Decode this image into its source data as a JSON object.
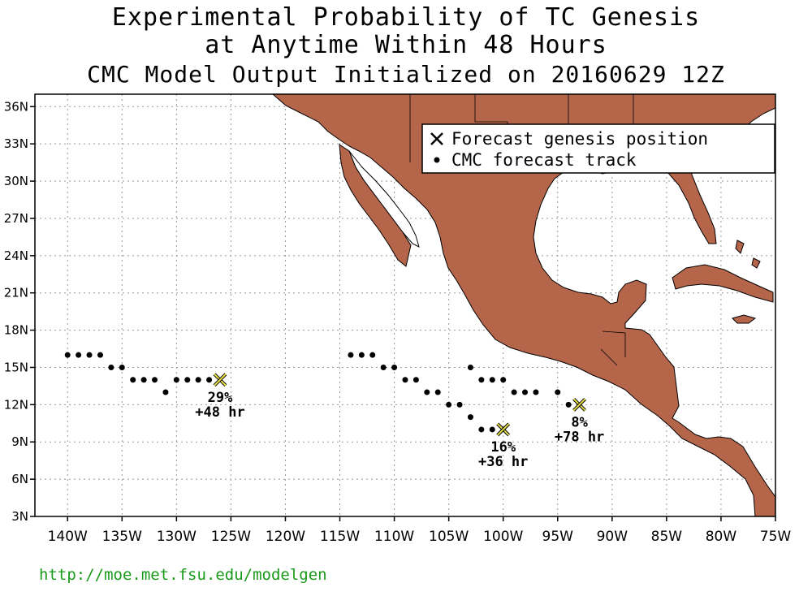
{
  "title": {
    "line1": "Experimental Probability of TC Genesis",
    "line2": "at Anytime Within 48 Hours",
    "line3": "CMC Model Output Initialized on 20160629 12Z"
  },
  "legend": {
    "genesis_label": "Forecast genesis position",
    "track_label": "CMC forecast track"
  },
  "axes": {
    "lat_ticks": [
      "36N",
      "33N",
      "30N",
      "27N",
      "24N",
      "21N",
      "18N",
      "15N",
      "12N",
      "9N",
      "6N",
      "3N"
    ],
    "lon_ticks": [
      "140W",
      "135W",
      "130W",
      "125W",
      "120W",
      "115W",
      "110W",
      "105W",
      "100W",
      "95W",
      "90W",
      "85W",
      "80W",
      "75W"
    ]
  },
  "colors": {
    "land": "#b5654a",
    "marker_fill": "#e8e040",
    "track": "#000000",
    "url": "#1a9a1a"
  },
  "genesis": [
    {
      "lon": -126,
      "lat": 14,
      "prob": "29%",
      "lead": "+48 hr"
    },
    {
      "lon": -100,
      "lat": 10,
      "prob": "16%",
      "lead": "+36 hr"
    },
    {
      "lon": -93,
      "lat": 12,
      "prob": "8%",
      "lead": "+78 hr"
    }
  ],
  "tracks": [
    [
      [
        -140,
        16
      ],
      [
        -139,
        16
      ],
      [
        -138,
        16
      ],
      [
        -137,
        16
      ],
      [
        -136,
        15
      ],
      [
        -135,
        15
      ],
      [
        -134,
        14
      ],
      [
        -133,
        14
      ],
      [
        -132,
        14
      ],
      [
        -131,
        13
      ],
      [
        -130,
        14
      ],
      [
        -129,
        14
      ],
      [
        -128,
        14
      ],
      [
        -127,
        14
      ]
    ],
    [
      [
        -114,
        16
      ],
      [
        -113,
        16
      ],
      [
        -112,
        16
      ],
      [
        -111,
        15
      ],
      [
        -110,
        15
      ],
      [
        -109,
        14
      ],
      [
        -108,
        14
      ],
      [
        -107,
        13
      ],
      [
        -106,
        13
      ],
      [
        -105,
        12
      ],
      [
        -104,
        12
      ],
      [
        -103,
        11
      ],
      [
        -102,
        10
      ],
      [
        -101,
        10
      ]
    ],
    [
      [
        -103,
        15
      ],
      [
        -102,
        14
      ],
      [
        -101,
        14
      ],
      [
        -100,
        14
      ],
      [
        -99,
        13
      ],
      [
        -98,
        13
      ],
      [
        -97,
        13
      ],
      [
        -95,
        13
      ],
      [
        -94,
        12
      ]
    ]
  ],
  "footer": {
    "url": "http://moe.met.fsu.edu/modelgen"
  }
}
